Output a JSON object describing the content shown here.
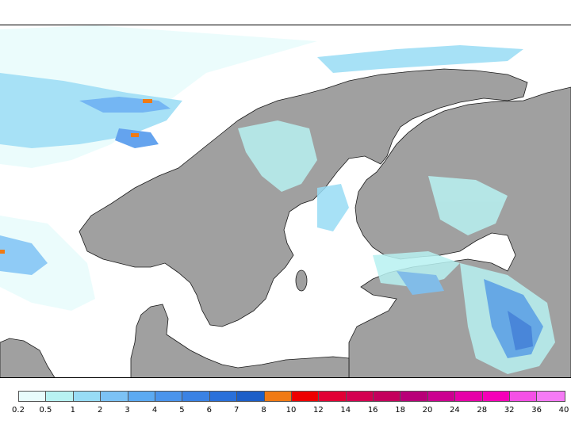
{
  "colors": {
    "land": "#a0a0a0",
    "sea": "#ffffff",
    "coast": "#1a1a1a"
  },
  "legend": {
    "colors": [
      "#e8fcfc",
      "#b8f2f2",
      "#98dcf5",
      "#7cc2f5",
      "#5caaf2",
      "#4a94ec",
      "#3a82e4",
      "#2a70da",
      "#1c5ec8",
      "#f07a14",
      "#ee0000",
      "#e20035",
      "#d40050",
      "#c4005c",
      "#b80078",
      "#cc0090",
      "#e600a8",
      "#f500b8",
      "#f450e6",
      "#f57af5"
    ],
    "labels": [
      "0.2",
      "0.5",
      "1",
      "2",
      "3",
      "4",
      "5",
      "6",
      "7",
      "8",
      "10",
      "12",
      "14",
      "16",
      "18",
      "20",
      "24",
      "28",
      "32",
      "36",
      "40"
    ]
  }
}
